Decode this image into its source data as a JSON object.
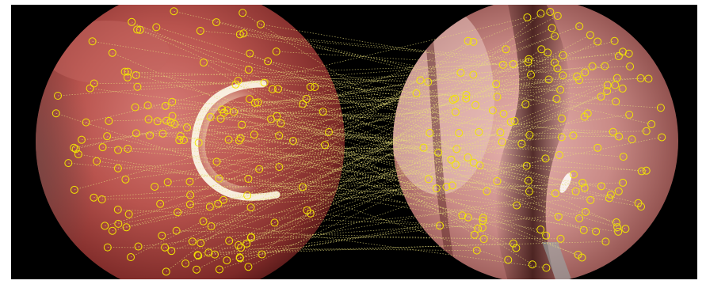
{
  "figure": {
    "description_hidden": "",
    "colors": {
      "background": "#000000",
      "frame": "#ffffff",
      "feature_marker": "#f2e600",
      "match_line": "#e8e07a",
      "tissue_left": "#b9544e",
      "tissue_right": "#c98a86",
      "specular": "#fbf6e6"
    },
    "icons": [
      "feature-circle-marker",
      "match-line"
    ]
  }
}
